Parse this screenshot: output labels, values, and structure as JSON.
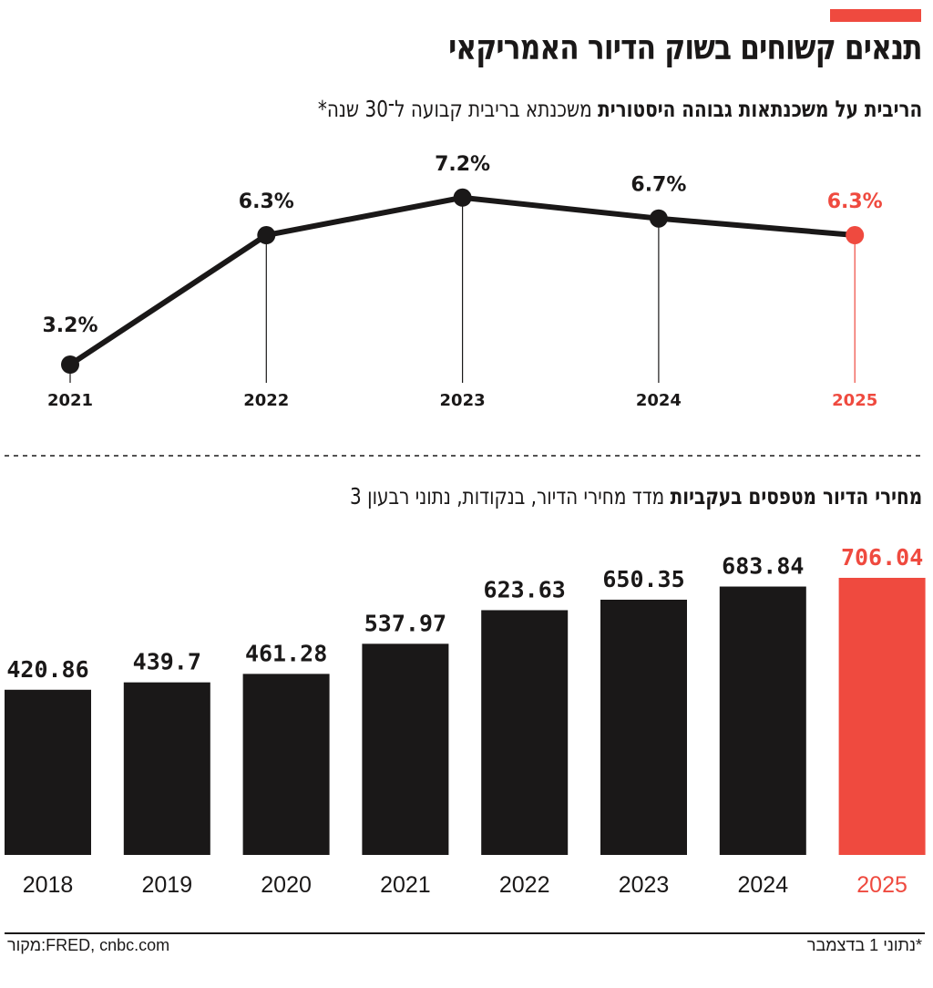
{
  "title": "תנאים קשוחים בשוק הדיור האמריקאי",
  "colors": {
    "accent": "#ef4a3f",
    "bars": "#1a1818"
  },
  "chart_data": [
    {
      "type": "line",
      "title_bold": "הריבית על משכנתאות גבוהה היסטורית",
      "subtitle": "משכנתא בריבית קבועה ל־30 שנה*",
      "categories": [
        "2021",
        "2022",
        "2023",
        "2024",
        "2025"
      ],
      "values": [
        3.2,
        6.3,
        7.2,
        6.7,
        6.3
      ],
      "labels": [
        "3.2%",
        "6.3%",
        "7.2%",
        "6.7%",
        "6.3%"
      ],
      "highlight": "2025",
      "grid": false
    },
    {
      "type": "bar",
      "title_bold": "מחירי הדיור מטפסים בעקביות",
      "subtitle": "מדד מחירי הדיור, בנקודות, נתוני רבעון 3",
      "categories": [
        "2018",
        "2019",
        "2020",
        "2021",
        "2022",
        "2023",
        "2024",
        "2025"
      ],
      "values": [
        420.86,
        439.7,
        461.28,
        537.97,
        623.63,
        650.35,
        683.84,
        706.04
      ],
      "labels": [
        "420.86",
        "439.7",
        "461.28",
        "537.97",
        "623.63",
        "650.35",
        "683.84",
        "706.04"
      ],
      "highlight": "2025",
      "grid": false
    }
  ],
  "footer": {
    "source": "מקור:FRED, cnbc.com",
    "note": "*נתוני 1 בדצמבר"
  }
}
